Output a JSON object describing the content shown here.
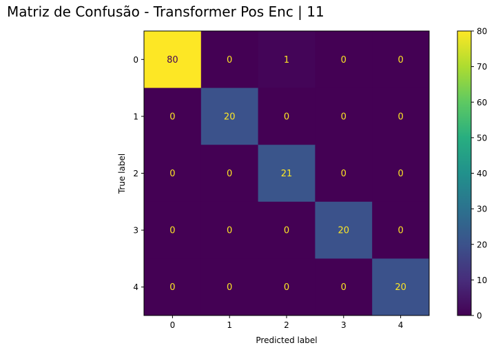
{
  "chart_data": {
    "type": "heatmap",
    "title": "Matriz de Confusão - Transformer Pos Enc | 11",
    "xlabel": "Predicted label",
    "ylabel": "True label",
    "x_categories": [
      "0",
      "1",
      "2",
      "3",
      "4"
    ],
    "y_categories": [
      "0",
      "1",
      "2",
      "3",
      "4"
    ],
    "matrix": [
      [
        80,
        0,
        1,
        0,
        0
      ],
      [
        0,
        20,
        0,
        0,
        0
      ],
      [
        0,
        0,
        21,
        0,
        0
      ],
      [
        0,
        0,
        0,
        20,
        0
      ],
      [
        0,
        0,
        0,
        0,
        20
      ]
    ],
    "colormap": "viridis",
    "color_range": [
      0,
      80
    ],
    "colorbar_ticks": [
      0,
      10,
      20,
      30,
      40,
      50,
      60,
      70,
      80
    ],
    "grid": false
  }
}
